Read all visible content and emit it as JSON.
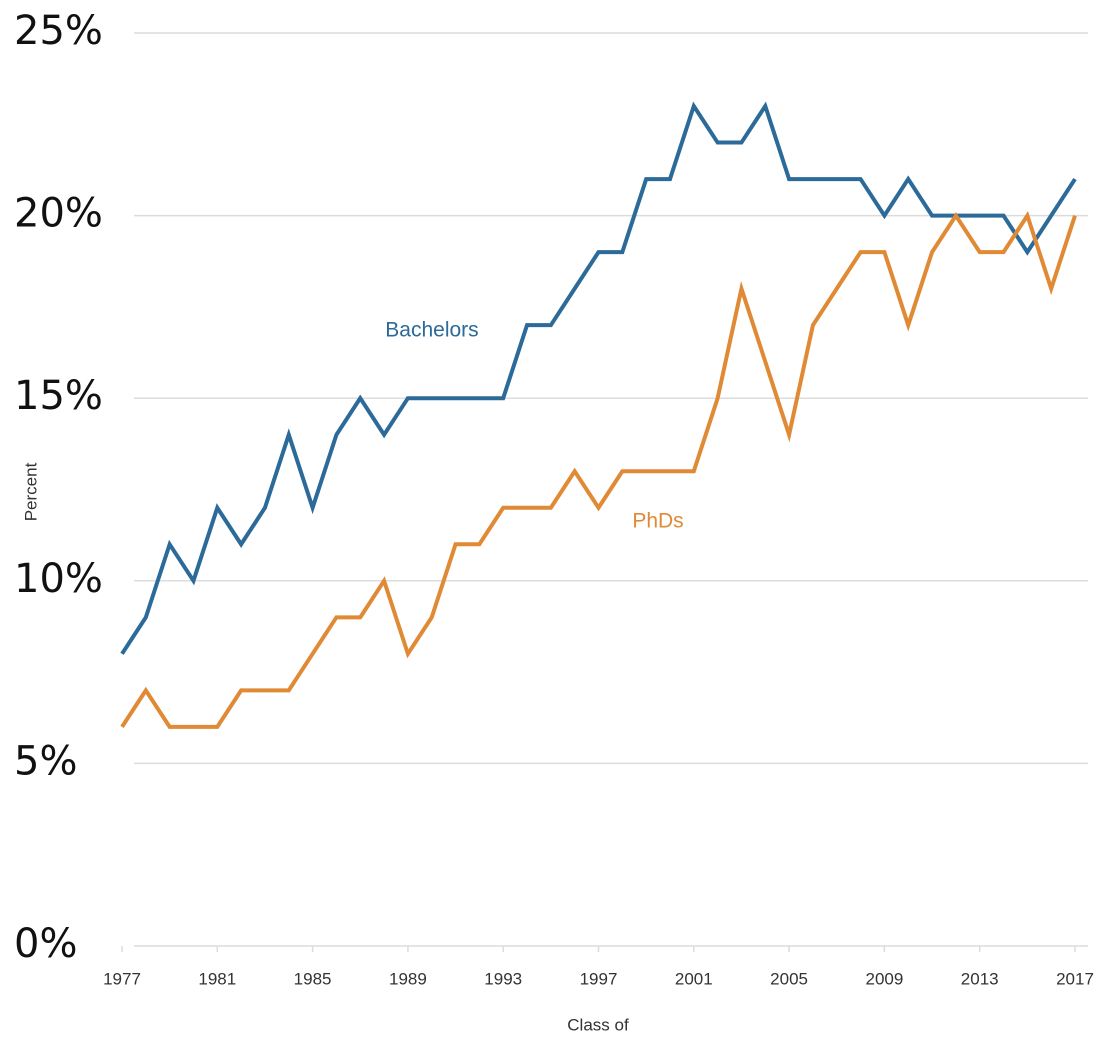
{
  "chart_data": {
    "type": "line",
    "x_label": "Class of",
    "y_label": "Percent",
    "x": [
      1977,
      1978,
      1979,
      1980,
      1981,
      1982,
      1983,
      1984,
      1985,
      1986,
      1987,
      1988,
      1989,
      1990,
      1991,
      1992,
      1993,
      1994,
      1995,
      1996,
      1997,
      1998,
      1999,
      2000,
      2001,
      2002,
      2003,
      2004,
      2005,
      2006,
      2007,
      2008,
      2009,
      2010,
      2011,
      2012,
      2013,
      2014,
      2015,
      2016,
      2017
    ],
    "series": [
      {
        "name": "Bachelors",
        "color": "#2b6a99",
        "values": [
          8,
          9,
          11,
          10,
          12,
          11,
          12,
          14,
          12,
          14,
          15,
          14,
          15,
          15,
          15,
          15,
          15,
          17,
          17,
          18,
          19,
          19,
          21,
          21,
          23,
          22,
          22,
          23,
          21,
          21,
          21,
          21,
          20,
          21,
          20,
          20,
          20,
          20,
          19,
          20,
          21
        ]
      },
      {
        "name": "PhDs",
        "color": "#e08a36",
        "values": [
          6,
          7,
          6,
          6,
          6,
          7,
          7,
          7,
          8,
          9,
          9,
          10,
          8,
          9,
          11,
          11,
          12,
          12,
          12,
          13,
          12,
          13,
          13,
          13,
          13,
          15,
          18,
          16,
          14,
          17,
          18,
          19,
          19,
          17,
          19,
          20,
          19,
          19,
          20,
          18,
          20
        ]
      }
    ],
    "xlim": [
      1977,
      2017
    ],
    "xticks": [
      1977,
      1981,
      1985,
      1989,
      1993,
      1997,
      2001,
      2005,
      2009,
      2013,
      2017
    ],
    "ylim": [
      0,
      25
    ],
    "yticks": [
      {
        "value": 0,
        "label": "0%"
      },
      {
        "value": 5,
        "label": "5%"
      },
      {
        "value": 10,
        "label": "10%"
      },
      {
        "value": 15,
        "label": "15%"
      },
      {
        "value": 20,
        "label": "20%"
      },
      {
        "value": 25,
        "label": "25%"
      }
    ],
    "grid": true
  }
}
